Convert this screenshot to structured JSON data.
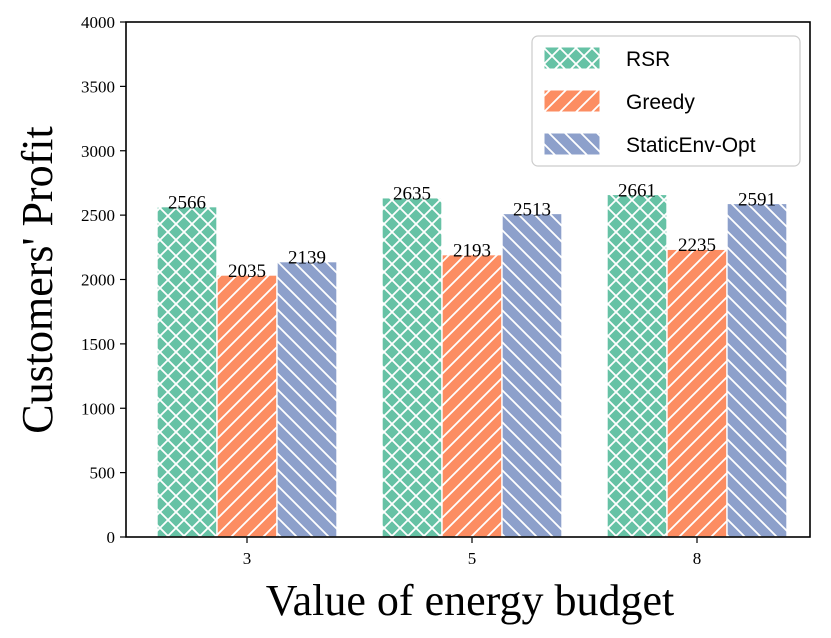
{
  "chart_data": {
    "type": "bar",
    "title": "",
    "xlabel": "Value of energy budget",
    "ylabel": "Customers' Profit",
    "categories": [
      "3",
      "5",
      "8"
    ],
    "series": [
      {
        "name": "RSR",
        "values": [
          2566,
          2635,
          2661
        ],
        "color": "#66c2a5",
        "hatch": "crosshatch"
      },
      {
        "name": "Greedy",
        "values": [
          2035,
          2193,
          2235
        ],
        "color": "#fc8d62",
        "hatch": "forward-diagonal"
      },
      {
        "name": "StaticEnv-Opt",
        "values": [
          2139,
          2513,
          2591
        ],
        "color": "#8da0cb",
        "hatch": "back-diagonal"
      }
    ],
    "data_labels": [
      [
        "2566",
        "2635",
        "2661"
      ],
      [
        "2035",
        "2193",
        "2235"
      ],
      [
        "2139",
        "2513",
        "2591"
      ]
    ],
    "ylim": [
      0,
      4000
    ],
    "yticks": [
      0,
      500,
      1000,
      1500,
      2000,
      2500,
      3000,
      3500,
      4000
    ],
    "ytick_labels": [
      "0",
      "500",
      "1000",
      "1500",
      "2000",
      "2500",
      "3000",
      "3500",
      "4000"
    ],
    "grid": false,
    "legend_position": "top-right"
  }
}
